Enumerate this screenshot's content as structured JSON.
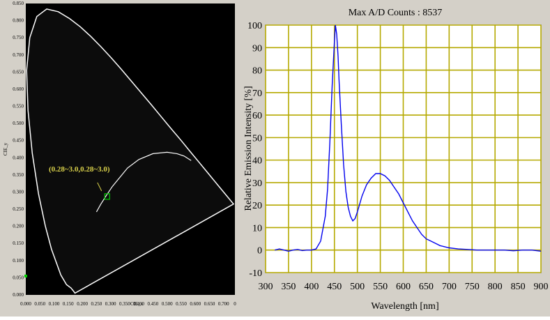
{
  "chart_data": [
    {
      "type": "scatter",
      "xlabel": "CIE_x",
      "ylabel": "CIE_y",
      "xlim": [
        0,
        0.74
      ],
      "ylim": [
        0,
        0.85
      ],
      "background": "#000000",
      "curve_color": "#ffffff",
      "x_ticks": [
        "0.000",
        "0.050",
        "0.100",
        "0.150",
        "0.200",
        "0.250",
        "0.300",
        "0.350",
        "0.400",
        "0.450",
        "0.500",
        "0.550",
        "0.600",
        "0.650",
        "0.700"
      ],
      "y_ticks": [
        "0.000",
        "0.050",
        "0.100",
        "0.150",
        "0.200",
        "0.250",
        "0.300",
        "0.350",
        "0.400",
        "0.450",
        "0.500",
        "0.550",
        "0.600",
        "0.650",
        "0.700",
        "0.750",
        "0.800",
        "0.850"
      ],
      "x_tick_last": "0",
      "spectral_locus": [
        [
          0.174,
          0.005
        ],
        [
          0.17,
          0.01
        ],
        [
          0.16,
          0.02
        ],
        [
          0.144,
          0.03
        ],
        [
          0.124,
          0.058
        ],
        [
          0.091,
          0.133
        ],
        [
          0.069,
          0.201
        ],
        [
          0.045,
          0.295
        ],
        [
          0.023,
          0.413
        ],
        [
          0.008,
          0.538
        ],
        [
          0.003,
          0.655
        ],
        [
          0.014,
          0.75
        ],
        [
          0.039,
          0.812
        ],
        [
          0.074,
          0.834
        ],
        [
          0.115,
          0.826
        ],
        [
          0.155,
          0.806
        ],
        [
          0.193,
          0.782
        ],
        [
          0.23,
          0.754
        ],
        [
          0.266,
          0.724
        ],
        [
          0.302,
          0.692
        ],
        [
          0.337,
          0.659
        ],
        [
          0.373,
          0.624
        ],
        [
          0.409,
          0.589
        ],
        [
          0.444,
          0.555
        ],
        [
          0.479,
          0.52
        ],
        [
          0.512,
          0.487
        ],
        [
          0.548,
          0.452
        ],
        [
          0.581,
          0.419
        ],
        [
          0.612,
          0.388
        ],
        [
          0.64,
          0.36
        ],
        [
          0.665,
          0.335
        ],
        [
          0.686,
          0.314
        ],
        [
          0.735,
          0.265
        ]
      ],
      "planckian_locus": [
        [
          0.25,
          0.242
        ],
        [
          0.265,
          0.264
        ],
        [
          0.285,
          0.29
        ],
        [
          0.306,
          0.316
        ],
        [
          0.33,
          0.34
        ],
        [
          0.36,
          0.37
        ],
        [
          0.4,
          0.395
        ],
        [
          0.45,
          0.412
        ],
        [
          0.5,
          0.416
        ],
        [
          0.535,
          0.412
        ],
        [
          0.56,
          0.405
        ],
        [
          0.585,
          0.392
        ]
      ],
      "marker": {
        "x": 0.288,
        "y": 0.287,
        "color": "#00cc00"
      },
      "annotation": {
        "text": "(0.28~3.0,0.28~3.0)",
        "color": "#d8d04a"
      },
      "axis_marker": {
        "y": 0.055,
        "color": "#00cc00"
      }
    },
    {
      "type": "line",
      "title": "Max A/D Counts : 8537",
      "xlabel": "Wavelength [nm]",
      "ylabel": "Relative Emission Intensity [%]",
      "xlim": [
        300,
        900
      ],
      "ylim": [
        -10,
        100
      ],
      "x_ticks": [
        "300",
        "350",
        "400",
        "450",
        "500",
        "550",
        "600",
        "650",
        "700",
        "750",
        "800",
        "850",
        "900"
      ],
      "y_ticks": [
        "-10",
        "0",
        "10",
        "20",
        "30",
        "40",
        "50",
        "60",
        "70",
        "80",
        "90",
        "100"
      ],
      "grid": true,
      "grid_color": "#b5a900",
      "line_color": "#0000ee",
      "series": [
        {
          "x": [
            320,
            330,
            340,
            350,
            360,
            370,
            380,
            390,
            400,
            410,
            420,
            430,
            435,
            440,
            445,
            450,
            452,
            455,
            458,
            460,
            465,
            470,
            475,
            480,
            485,
            490,
            495,
            500,
            510,
            520,
            530,
            540,
            550,
            560,
            570,
            580,
            590,
            600,
            610,
            620,
            630,
            640,
            650,
            660,
            670,
            680,
            690,
            700,
            720,
            740,
            760,
            780,
            800,
            820,
            840,
            860,
            880,
            900
          ],
          "y": [
            0,
            0.5,
            0,
            -0.5,
            0,
            0.3,
            -0.2,
            0,
            0,
            0.5,
            4,
            15,
            27,
            48,
            73,
            93,
            100,
            96,
            86,
            76,
            56,
            38,
            26,
            19,
            15,
            13,
            14,
            17,
            24,
            29,
            32,
            34,
            34,
            33,
            31,
            28,
            25,
            21,
            17,
            13,
            10,
            7,
            5,
            4,
            3,
            2,
            1.5,
            1,
            0.5,
            0.3,
            0,
            0,
            0,
            0,
            -0.3,
            0,
            0,
            -0.5
          ]
        }
      ]
    }
  ]
}
